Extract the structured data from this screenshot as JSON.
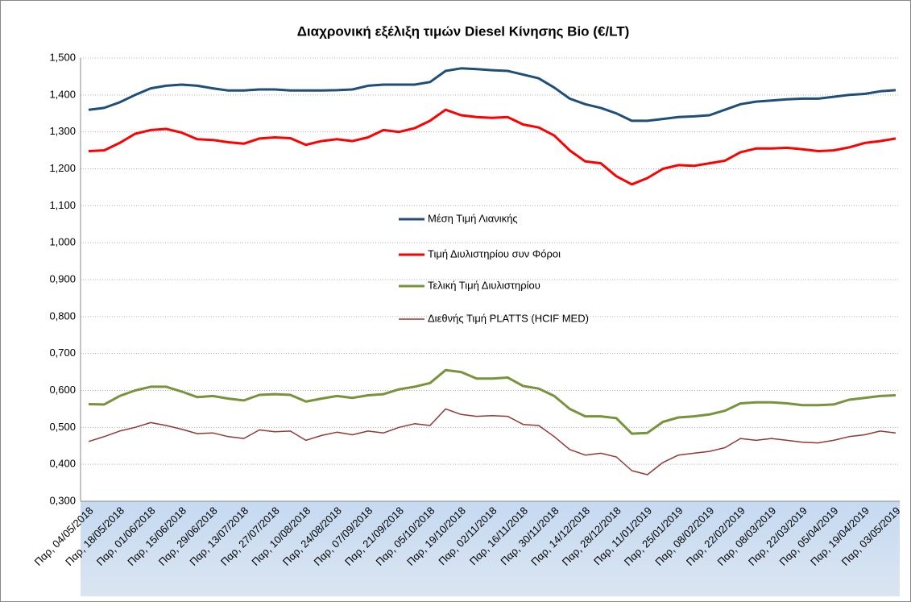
{
  "chart_data": {
    "type": "line",
    "title": "Διαχρονική εξέλιξη τιμών Diesel Κίνησης Bio (€/LT)",
    "categories": [
      "Παρ, 04/05/2018",
      null,
      "Παρ, 18/05/2018",
      null,
      "Παρ, 01/06/2018",
      null,
      "Παρ, 15/06/2018",
      null,
      "Παρ, 29/06/2018",
      null,
      "Παρ, 13/07/2018",
      null,
      "Παρ, 27/07/2018",
      null,
      "Παρ, 10/08/2018",
      null,
      "Παρ, 24/08/2018",
      null,
      "Παρ, 07/09/2018",
      null,
      "Παρ, 21/09/2018",
      null,
      "Παρ, 05/10/2018",
      null,
      "Παρ, 19/10/2018",
      null,
      "Παρ, 02/11/2018",
      null,
      "Παρ, 16/11/2018",
      null,
      "Παρ, 30/11/2018",
      null,
      "Παρ, 14/12/2018",
      null,
      "Παρ, 28/12/2018",
      null,
      "Παρ, 11/01/2019",
      null,
      "Παρ, 25/01/2019",
      null,
      "Παρ, 08/02/2019",
      null,
      "Παρ, 22/02/2019",
      null,
      "Παρ, 08/03/2019",
      null,
      "Παρ, 22/03/2019",
      null,
      "Παρ, 05/04/2019",
      null,
      "Παρ, 19/04/2019",
      null,
      "Παρ, 03/05/2019"
    ],
    "series": [
      {
        "name": "Μέση Τιμή Λιανικής",
        "color": "#1f4e79",
        "values": [
          1.36,
          1.365,
          1.38,
          1.4,
          1.418,
          1.425,
          1.428,
          1.425,
          1.418,
          1.412,
          1.412,
          1.415,
          1.415,
          1.412,
          1.412,
          1.412,
          1.413,
          1.415,
          1.425,
          1.428,
          1.428,
          1.428,
          1.435,
          1.465,
          1.472,
          1.47,
          1.467,
          1.465,
          1.455,
          1.445,
          1.42,
          1.39,
          1.375,
          1.365,
          1.35,
          1.33,
          1.33,
          1.335,
          1.34,
          1.342,
          1.345,
          1.36,
          1.375,
          1.382,
          1.385,
          1.388,
          1.39,
          1.39,
          1.395,
          1.4,
          1.403,
          1.41,
          1.413
        ]
      },
      {
        "name": "Τιμή Διυλιστηρίου συν Φόροι",
        "color": "#ff0000",
        "values": [
          1.248,
          1.25,
          1.27,
          1.295,
          1.305,
          1.308,
          1.298,
          1.28,
          1.278,
          1.272,
          1.268,
          1.282,
          1.285,
          1.283,
          1.265,
          1.275,
          1.28,
          1.275,
          1.285,
          1.305,
          1.3,
          1.31,
          1.33,
          1.36,
          1.345,
          1.34,
          1.338,
          1.34,
          1.32,
          1.312,
          1.29,
          1.25,
          1.22,
          1.215,
          1.18,
          1.158,
          1.175,
          1.2,
          1.21,
          1.208,
          1.215,
          1.222,
          1.245,
          1.255,
          1.255,
          1.257,
          1.253,
          1.248,
          1.25,
          1.258,
          1.27,
          1.275,
          1.282
        ]
      },
      {
        "name": "Τελική Τιμή Διυλιστηρίου",
        "color": "#77933c",
        "values": [
          0.563,
          0.562,
          0.585,
          0.6,
          0.61,
          0.61,
          0.597,
          0.582,
          0.585,
          0.578,
          0.573,
          0.588,
          0.59,
          0.588,
          0.57,
          0.578,
          0.585,
          0.58,
          0.587,
          0.59,
          0.603,
          0.61,
          0.62,
          0.655,
          0.65,
          0.632,
          0.632,
          0.635,
          0.612,
          0.605,
          0.585,
          0.55,
          0.53,
          0.53,
          0.525,
          0.483,
          0.485,
          0.515,
          0.527,
          0.53,
          0.535,
          0.545,
          0.565,
          0.568,
          0.568,
          0.565,
          0.56,
          0.56,
          0.562,
          0.575,
          0.58,
          0.585,
          0.587
        ]
      },
      {
        "name": "Διεθνής Τιμή PLATTS (HCIF MED)",
        "color": "#953735",
        "values": [
          0.462,
          0.475,
          0.49,
          0.5,
          0.513,
          0.505,
          0.495,
          0.483,
          0.485,
          0.475,
          0.47,
          0.493,
          0.488,
          0.49,
          0.465,
          0.478,
          0.487,
          0.48,
          0.49,
          0.485,
          0.5,
          0.51,
          0.505,
          0.55,
          0.535,
          0.53,
          0.532,
          0.53,
          0.508,
          0.505,
          0.475,
          0.44,
          0.425,
          0.43,
          0.42,
          0.383,
          0.372,
          0.405,
          0.425,
          0.43,
          0.435,
          0.445,
          0.47,
          0.465,
          0.47,
          0.465,
          0.46,
          0.458,
          0.465,
          0.475,
          0.48,
          0.49,
          0.485
        ]
      }
    ],
    "ylim": [
      0.3,
      1.5
    ],
    "yticks": [
      {
        "value": 0.3,
        "label": "0,300"
      },
      {
        "value": 0.4,
        "label": "0,400"
      },
      {
        "value": 0.5,
        "label": "0,500"
      },
      {
        "value": 0.6,
        "label": "0,600"
      },
      {
        "value": 0.7,
        "label": "0,700"
      },
      {
        "value": 0.8,
        "label": "0,800"
      },
      {
        "value": 0.9,
        "label": "0,900"
      },
      {
        "value": 1.0,
        "label": "1,000"
      },
      {
        "value": 1.1,
        "label": "1,100"
      },
      {
        "value": 1.2,
        "label": "1,200"
      },
      {
        "value": 1.3,
        "label": "1,300"
      },
      {
        "value": 1.4,
        "label": "1,400"
      },
      {
        "value": 1.5,
        "label": "1,500"
      }
    ],
    "grid": true,
    "legend": "center"
  }
}
